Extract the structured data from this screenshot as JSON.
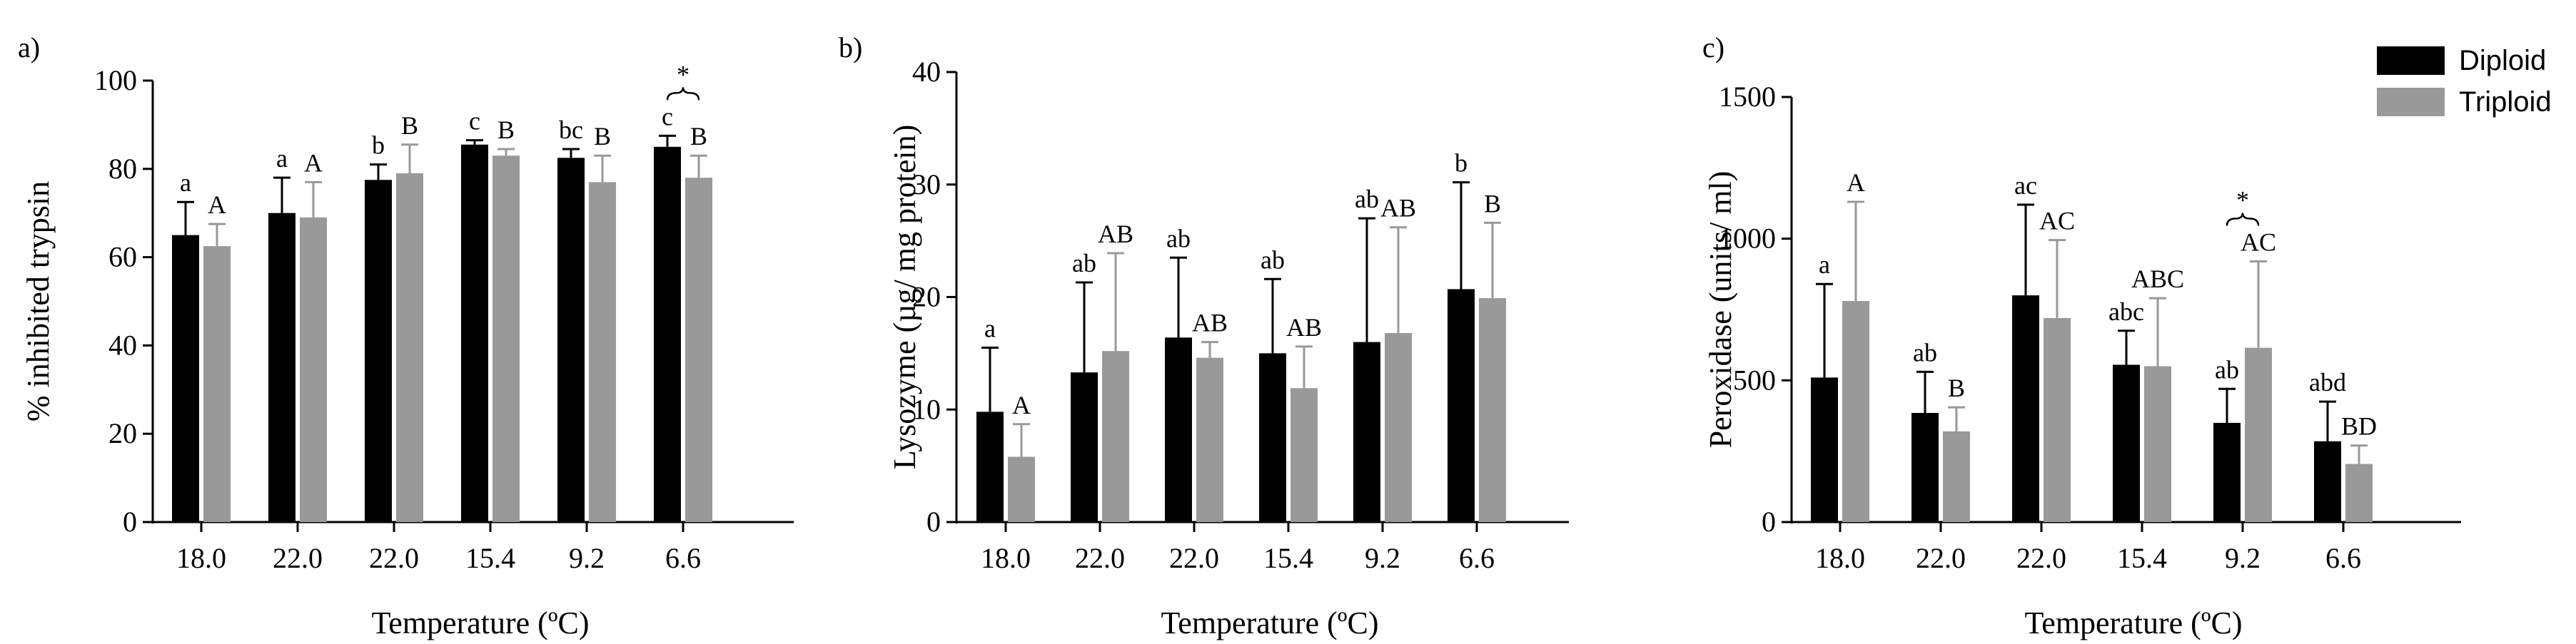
{
  "chart_data": [
    {
      "type": "bar",
      "panel_label": "a)",
      "ylabel": "% inhibited trypsin",
      "xlabel": "Temperature (ºC)",
      "ylim": [
        0,
        100
      ],
      "yticks": [
        "0",
        "20",
        "40",
        "60",
        "80",
        "100"
      ],
      "categories": [
        "18.0",
        "22.0",
        "22.0",
        "15.4",
        "9.2",
        "6.6"
      ],
      "series": [
        {
          "name": "Diploid",
          "color": "#000000",
          "values": [
            65,
            70,
            77.5,
            85.5,
            82.5,
            85
          ],
          "errors": [
            7.5,
            8,
            3.5,
            1,
            2,
            2.5
          ],
          "letters": [
            "a",
            "a",
            "b",
            "c",
            "bc",
            "c"
          ]
        },
        {
          "name": "Triploid",
          "color": "#999999",
          "values": [
            62.5,
            69,
            79,
            83,
            77,
            78
          ],
          "errors": [
            5,
            8,
            6.5,
            1.5,
            6,
            5
          ],
          "letters": [
            "A",
            "A",
            "B",
            "B",
            "B",
            "B"
          ]
        }
      ],
      "significance": [
        {
          "category_index": 5,
          "mark": "*"
        }
      ]
    },
    {
      "type": "bar",
      "panel_label": "b)",
      "ylabel": "Lysozyme (µg/ mg protein)",
      "xlabel": "Temperature (ºC)",
      "ylim": [
        0,
        40
      ],
      "yticks": [
        "0",
        "10",
        "20",
        "30",
        "40"
      ],
      "categories": [
        "18.0",
        "22.0",
        "22.0",
        "15.4",
        "9.2",
        "6.6"
      ],
      "series": [
        {
          "name": "Diploid",
          "color": "#000000",
          "values": [
            9.8,
            13.3,
            16.4,
            15,
            16,
            20.7
          ],
          "errors": [
            5.7,
            8,
            7.1,
            6.6,
            11,
            9.5
          ],
          "letters": [
            "a",
            "ab",
            "ab",
            "ab",
            "ab",
            "b"
          ]
        },
        {
          "name": "Triploid",
          "color": "#999999",
          "values": [
            5.8,
            15.2,
            14.6,
            11.9,
            16.8,
            19.9
          ],
          "errors": [
            2.9,
            8.7,
            1.4,
            3.7,
            9.4,
            6.7
          ],
          "letters": [
            "A",
            "AB",
            "AB",
            "AB",
            "AB",
            "B"
          ]
        }
      ]
    },
    {
      "type": "bar",
      "panel_label": "c)",
      "ylabel": "Peroxidase (units/ ml)",
      "xlabel": "Temperature (ºC)",
      "ylim": [
        0,
        1500
      ],
      "yticks": [
        "0",
        "500",
        "1000",
        "1500"
      ],
      "categories": [
        "18.0",
        "22.0",
        "22.0",
        "15.4",
        "9.2",
        "6.6"
      ],
      "series": [
        {
          "name": "Diploid",
          "color": "#000000",
          "values": [
            510,
            385,
            800,
            555,
            350,
            285
          ],
          "errors": [
            330,
            145,
            320,
            120,
            120,
            140
          ],
          "letters": [
            "a",
            "ab",
            "ac",
            "abc",
            "ab",
            "abd"
          ]
        },
        {
          "name": "Triploid",
          "color": "#999999",
          "values": [
            780,
            320,
            720,
            550,
            615,
            205
          ],
          "errors": [
            350,
            85,
            275,
            240,
            305,
            65
          ],
          "letters": [
            "A",
            "B",
            "AC",
            "ABC",
            "AC",
            "BD"
          ]
        }
      ],
      "significance": [
        {
          "category_index": 4,
          "mark": "*"
        }
      ],
      "legend": {
        "position": "top-right",
        "entries": [
          "Diploid",
          "Triploid"
        ]
      }
    }
  ]
}
